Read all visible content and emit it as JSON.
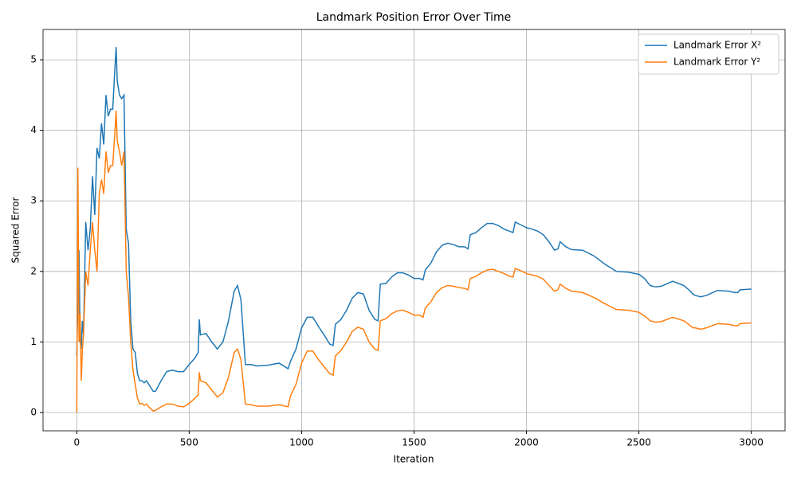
{
  "chart_data": {
    "type": "line",
    "title": "Landmark Position Error Over Time",
    "x_label": "Iteration",
    "y_label": "Squared Error",
    "x": [
      0,
      5,
      10,
      15,
      20,
      25,
      30,
      40,
      50,
      60,
      70,
      80,
      90,
      100,
      110,
      120,
      130,
      140,
      150,
      160,
      170,
      175,
      180,
      190,
      200,
      210,
      220,
      230,
      240,
      250,
      260,
      270,
      280,
      290,
      300,
      310,
      320,
      330,
      340,
      350,
      375,
      400,
      425,
      450,
      475,
      500,
      525,
      540,
      545,
      550,
      575,
      600,
      625,
      650,
      675,
      700,
      715,
      730,
      750,
      775,
      800,
      850,
      900,
      940,
      950,
      975,
      1000,
      1025,
      1050,
      1075,
      1100,
      1125,
      1140,
      1150,
      1175,
      1200,
      1225,
      1250,
      1275,
      1300,
      1325,
      1340,
      1350,
      1375,
      1400,
      1425,
      1450,
      1475,
      1500,
      1525,
      1540,
      1550,
      1575,
      1600,
      1625,
      1650,
      1675,
      1700,
      1725,
      1740,
      1750,
      1775,
      1800,
      1825,
      1850,
      1875,
      1900,
      1925,
      1940,
      1950,
      1975,
      2000,
      2025,
      2050,
      2075,
      2100,
      2125,
      2140,
      2150,
      2175,
      2200,
      2250,
      2300,
      2350,
      2400,
      2450,
      2500,
      2525,
      2550,
      2575,
      2600,
      2650,
      2700,
      2725,
      2740,
      2750,
      2775,
      2800,
      2850,
      2900,
      2925,
      2940,
      2950,
      3000
    ],
    "series": [
      {
        "name": "Landmark Error X²",
        "color": "#1f77b4",
        "values": [
          0.8,
          1.6,
          2.3,
          1.0,
          0.9,
          1.3,
          1.1,
          2.7,
          2.3,
          2.6,
          3.35,
          2.8,
          3.75,
          3.6,
          4.1,
          3.8,
          4.5,
          4.2,
          4.3,
          4.3,
          4.9,
          5.18,
          4.7,
          4.5,
          4.45,
          4.5,
          2.6,
          2.4,
          1.3,
          0.9,
          0.85,
          0.55,
          0.45,
          0.45,
          0.42,
          0.45,
          0.4,
          0.35,
          0.3,
          0.3,
          0.45,
          0.58,
          0.6,
          0.58,
          0.58,
          0.68,
          0.77,
          0.85,
          1.32,
          1.1,
          1.12,
          1.0,
          0.9,
          1.0,
          1.3,
          1.72,
          1.8,
          1.6,
          0.68,
          0.68,
          0.66,
          0.67,
          0.7,
          0.62,
          0.72,
          0.9,
          1.2,
          1.35,
          1.35,
          1.22,
          1.1,
          0.97,
          0.95,
          1.25,
          1.32,
          1.45,
          1.62,
          1.7,
          1.68,
          1.45,
          1.32,
          1.3,
          1.82,
          1.83,
          1.92,
          1.98,
          1.98,
          1.95,
          1.9,
          1.9,
          1.88,
          2.02,
          2.12,
          2.28,
          2.37,
          2.4,
          2.38,
          2.35,
          2.35,
          2.32,
          2.52,
          2.55,
          2.62,
          2.68,
          2.68,
          2.65,
          2.6,
          2.57,
          2.55,
          2.7,
          2.66,
          2.62,
          2.6,
          2.57,
          2.52,
          2.42,
          2.3,
          2.32,
          2.42,
          2.35,
          2.31,
          2.3,
          2.22,
          2.1,
          2.0,
          1.99,
          1.96,
          1.9,
          1.8,
          1.78,
          1.79,
          1.86,
          1.8,
          1.73,
          1.68,
          1.66,
          1.64,
          1.66,
          1.73,
          1.72,
          1.7,
          1.7,
          1.74,
          1.75
        ]
      },
      {
        "name": "Landmark Error Y²",
        "color": "#ff7f0e",
        "values": [
          0.0,
          3.47,
          1.0,
          1.4,
          0.45,
          0.9,
          1.1,
          2.0,
          1.8,
          2.3,
          2.7,
          2.3,
          2.0,
          3.1,
          3.3,
          3.1,
          3.7,
          3.4,
          3.5,
          3.5,
          4.0,
          4.28,
          3.85,
          3.7,
          3.5,
          3.7,
          2.0,
          1.65,
          1.0,
          0.6,
          0.4,
          0.2,
          0.12,
          0.13,
          0.1,
          0.12,
          0.08,
          0.05,
          0.02,
          0.03,
          0.08,
          0.12,
          0.12,
          0.09,
          0.08,
          0.13,
          0.2,
          0.25,
          0.57,
          0.45,
          0.42,
          0.32,
          0.22,
          0.28,
          0.5,
          0.85,
          0.9,
          0.75,
          0.12,
          0.11,
          0.09,
          0.09,
          0.11,
          0.08,
          0.23,
          0.4,
          0.7,
          0.87,
          0.87,
          0.75,
          0.65,
          0.55,
          0.53,
          0.8,
          0.88,
          1.0,
          1.15,
          1.21,
          1.18,
          1.0,
          0.9,
          0.88,
          1.3,
          1.33,
          1.4,
          1.44,
          1.45,
          1.42,
          1.38,
          1.38,
          1.35,
          1.48,
          1.57,
          1.7,
          1.77,
          1.8,
          1.79,
          1.77,
          1.76,
          1.74,
          1.9,
          1.93,
          1.98,
          2.02,
          2.03,
          2.0,
          1.97,
          1.93,
          1.92,
          2.04,
          2.01,
          1.97,
          1.95,
          1.93,
          1.89,
          1.8,
          1.72,
          1.74,
          1.82,
          1.76,
          1.72,
          1.7,
          1.63,
          1.54,
          1.46,
          1.45,
          1.42,
          1.37,
          1.3,
          1.28,
          1.29,
          1.35,
          1.3,
          1.24,
          1.2,
          1.2,
          1.18,
          1.2,
          1.26,
          1.25,
          1.23,
          1.23,
          1.26,
          1.27
        ]
      }
    ],
    "xlim": [
      -150,
      3150
    ],
    "ylim": [
      -0.26,
      5.43
    ],
    "xticks": [
      0,
      500,
      1000,
      1500,
      2000,
      2500,
      3000
    ],
    "yticks": [
      0,
      1,
      2,
      3,
      4,
      5
    ],
    "grid": true,
    "legend": "upper right"
  }
}
